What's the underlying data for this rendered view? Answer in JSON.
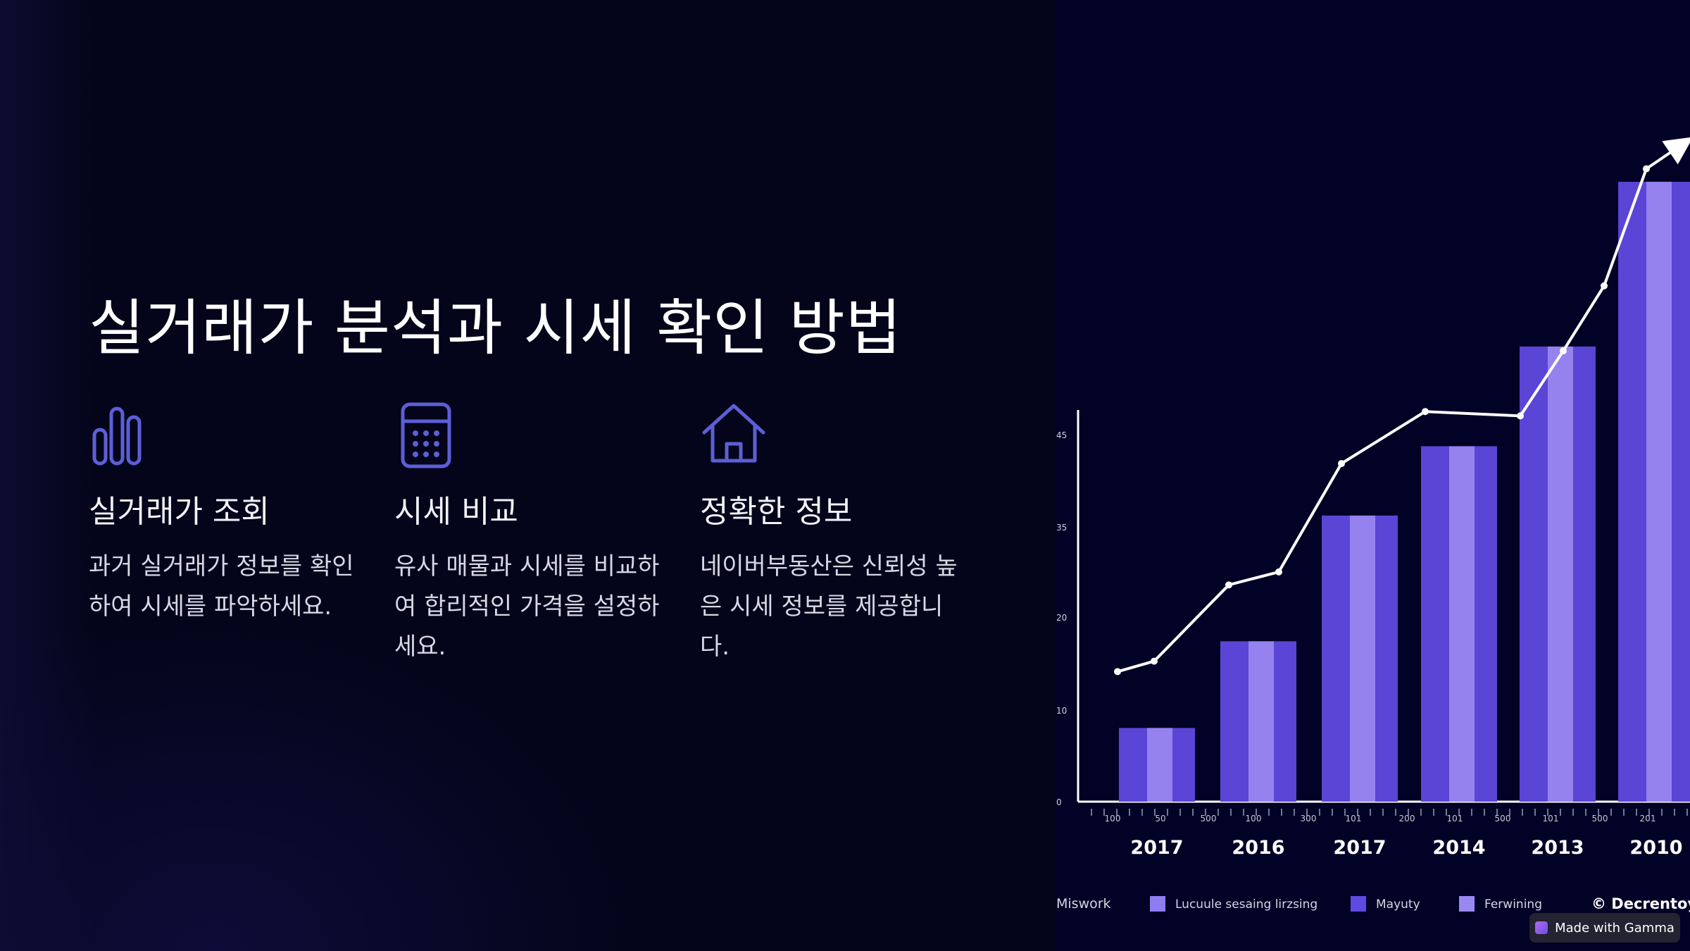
{
  "slide": {
    "title": "실거래가 분석과 시세 확인 방법",
    "features": [
      {
        "icon": "bar-chart-icon",
        "title": "실거래가 조회",
        "body": "과거 실거래가 정보를 확인하여 시세를 파악하세요."
      },
      {
        "icon": "calculator-icon",
        "title": "시세 비교",
        "body": "유사 매물과 시세를 비교하여 합리적인 가격을 설정하세요."
      },
      {
        "icon": "house-icon",
        "title": "정확한 정보",
        "body": "네이버부동산은 신뢰성 높은 시세 정보를 제공합니다."
      }
    ],
    "icon_color": "#5d5fd6"
  },
  "chart_data": {
    "type": "bar",
    "categories": [
      "2017",
      "2016",
      "2017",
      "2014",
      "2013",
      "2010"
    ],
    "values": [
      8.5,
      18.5,
      33,
      41,
      52.5,
      71.5
    ],
    "line_values": [
      15,
      16.2,
      25,
      26.5,
      39,
      45,
      44.5,
      52,
      59.5,
      73,
      75
    ],
    "ytick_labels": [
      "0",
      "10",
      "20",
      "35",
      "45"
    ],
    "minor_tick_labels": [
      "100",
      "50",
      "500",
      "100",
      "300",
      "101",
      "200",
      "101",
      "500",
      "101",
      "500",
      "201"
    ],
    "legend": {
      "lead": "Miswork",
      "items": [
        {
          "label": "Lucuule sesaing lirzsing",
          "color": "#8e7df0"
        },
        {
          "label": "Mayuty",
          "color": "#5e4ae0"
        },
        {
          "label": "Ferwining",
          "color": "#9a88f2"
        }
      ],
      "credit": "© Decrentoy.c"
    },
    "colors": {
      "bar": "#5b45d6",
      "bar_highlight": "#a897f5",
      "line": "#ffffff",
      "axis": "#ffffff"
    }
  },
  "badge": {
    "label": "Made with Gamma"
  }
}
